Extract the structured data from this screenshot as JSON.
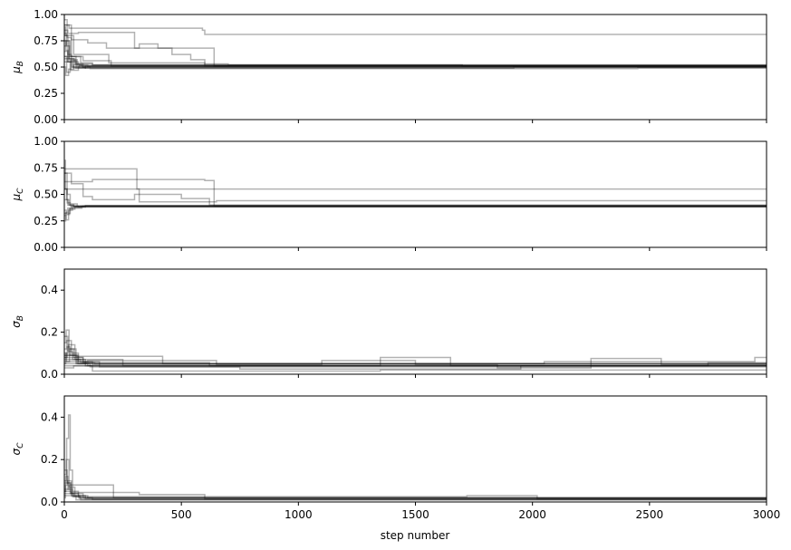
{
  "chart_data": {
    "type": "line",
    "description_kind": "MCMC walker trace plot, 4 stacked panels sharing the x axis",
    "shared_x": {
      "label": "step number",
      "lim": [
        0,
        3000
      ],
      "ticks": [
        0,
        500,
        1000,
        1500,
        2000,
        2500,
        3000
      ],
      "tick_labels": [
        "0",
        "500",
        "1000",
        "1500",
        "2000",
        "2500",
        "3000"
      ]
    },
    "line_color": "#000000",
    "line_alpha": 0.3,
    "panels": [
      {
        "ylabel_base": "μ",
        "ylabel_sub": "B",
        "ylim": [
          0,
          1
        ],
        "yticks": [
          0,
          0.25,
          0.5,
          0.75,
          1.0
        ],
        "ytick_labels": [
          "0.00",
          "0.25",
          "0.50",
          "0.75",
          "1.00"
        ],
        "series": [
          {
            "x": [
              0,
              5,
              15,
              30,
              60,
              100,
              3000
            ],
            "y": [
              0.88,
              0.8,
              0.62,
              0.55,
              0.52,
              0.51,
              0.51
            ]
          },
          {
            "x": [
              0,
              8,
              20,
              45,
              80,
              3000
            ],
            "y": [
              0.7,
              0.75,
              0.58,
              0.53,
              0.5,
              0.5
            ]
          },
          {
            "x": [
              0,
              10,
              25,
              50,
              90,
              3000
            ],
            "y": [
              0.6,
              0.45,
              0.56,
              0.49,
              0.51,
              0.51
            ]
          },
          {
            "x": [
              0,
              12,
              30,
              70,
              120,
              3000
            ],
            "y": [
              0.95,
              0.78,
              0.6,
              0.54,
              0.52,
              0.52
            ]
          },
          {
            "x": [
              0,
              6,
              18,
              40,
              75,
              3000
            ],
            "y": [
              0.5,
              0.42,
              0.48,
              0.52,
              0.5,
              0.5
            ]
          },
          {
            "x": [
              0,
              9,
              22,
              55,
              95,
              3000
            ],
            "y": [
              0.82,
              0.7,
              0.57,
              0.51,
              0.505,
              0.505
            ]
          },
          {
            "x": [
              0,
              7,
              16,
              35,
              65,
              3000
            ],
            "y": [
              0.75,
              0.66,
              0.55,
              0.5,
              0.515,
              0.515
            ]
          },
          {
            "x": [
              0,
              14,
              28,
              60,
              110,
              3000
            ],
            "y": [
              0.65,
              0.55,
              0.47,
              0.5,
              0.495,
              0.495
            ]
          },
          {
            "x": [
              0,
              20,
              210,
              590,
              600,
              3000
            ],
            "y": [
              0.9,
              0.87,
              0.87,
              0.85,
              0.81,
              0.81
            ]
          },
          {
            "x": [
              0,
              15,
              60,
              280,
              300,
              580,
              640,
              3000
            ],
            "y": [
              0.85,
              0.82,
              0.83,
              0.83,
              0.68,
              0.68,
              0.51,
              0.51
            ]
          },
          {
            "x": [
              0,
              30,
              100,
              180,
              320,
              400,
              460,
              540,
              600,
              3000
            ],
            "y": [
              0.9,
              0.76,
              0.73,
              0.68,
              0.72,
              0.68,
              0.62,
              0.57,
              0.51,
              0.51
            ]
          },
          {
            "x": [
              0,
              40,
              160,
              190,
              600,
              700,
              1000,
              1600,
              1700,
              3000
            ],
            "y": [
              0.8,
              0.62,
              0.62,
              0.54,
              0.53,
              0.52,
              0.52,
              0.52,
              0.51,
              0.51
            ]
          },
          {
            "x": [
              0,
              30,
              90,
              1900,
              1920,
              2900,
              3000
            ],
            "y": [
              0.55,
              0.5,
              0.49,
              0.49,
              0.5,
              0.5,
              0.5
            ]
          },
          {
            "x": [
              0,
              50,
              120,
              3000
            ],
            "y": [
              0.6,
              0.53,
              0.52,
              0.52
            ]
          },
          {
            "x": [
              0,
              25,
              80,
              200,
              3000
            ],
            "y": [
              0.75,
              0.6,
              0.56,
              0.51,
              0.51
            ]
          },
          {
            "x": [
              0,
              40,
              110,
              2400,
              2450,
              3000
            ],
            "y": [
              0.58,
              0.49,
              0.485,
              0.485,
              0.49,
              0.49
            ]
          }
        ]
      },
      {
        "ylabel_base": "μ",
        "ylabel_sub": "C",
        "ylim": [
          0,
          1
        ],
        "yticks": [
          0,
          0.25,
          0.5,
          0.75,
          1.0
        ],
        "ytick_labels": [
          "0.00",
          "0.25",
          "0.50",
          "0.75",
          "1.00"
        ],
        "series": [
          {
            "x": [
              0,
              5,
              12,
              25,
              50,
              3000
            ],
            "y": [
              0.82,
              0.55,
              0.42,
              0.39,
              0.385,
              0.385
            ]
          },
          {
            "x": [
              0,
              8,
              18,
              35,
              70,
              3000
            ],
            "y": [
              0.3,
              0.26,
              0.35,
              0.38,
              0.39,
              0.39
            ]
          },
          {
            "x": [
              0,
              10,
              20,
              40,
              90,
              3000
            ],
            "y": [
              0.55,
              0.45,
              0.4,
              0.38,
              0.395,
              0.395
            ]
          },
          {
            "x": [
              0,
              6,
              15,
              30,
              60,
              3000
            ],
            "y": [
              0.25,
              0.33,
              0.37,
              0.39,
              0.38,
              0.38
            ]
          },
          {
            "x": [
              0,
              12,
              25,
              55,
              100,
              3000
            ],
            "y": [
              0.7,
              0.5,
              0.41,
              0.39,
              0.39,
              0.39
            ]
          },
          {
            "x": [
              0,
              9,
              22,
              45,
              80,
              3000
            ],
            "y": [
              0.35,
              0.31,
              0.36,
              0.385,
              0.39,
              0.39
            ]
          },
          {
            "x": [
              0,
              20,
              300,
              310,
              3000
            ],
            "y": [
              0.74,
              0.74,
              0.74,
              0.55,
              0.55
            ]
          },
          {
            "x": [
              0,
              40,
              310,
              320,
              640,
              650,
              3000
            ],
            "y": [
              0.55,
              0.55,
              0.55,
              0.43,
              0.43,
              0.44,
              0.44
            ]
          },
          {
            "x": [
              0,
              60,
              120,
              330,
              600,
              640,
              3000
            ],
            "y": [
              0.62,
              0.62,
              0.64,
              0.64,
              0.63,
              0.39,
              0.39
            ]
          },
          {
            "x": [
              0,
              30,
              80,
              120,
              300,
              500,
              620,
              3000
            ],
            "y": [
              0.7,
              0.6,
              0.48,
              0.45,
              0.5,
              0.46,
              0.4,
              0.4
            ]
          },
          {
            "x": [
              0,
              15,
              40,
              3000
            ],
            "y": [
              0.45,
              0.4,
              0.39,
              0.39
            ]
          },
          {
            "x": [
              0,
              25,
              75,
              3000
            ],
            "y": [
              0.32,
              0.37,
              0.385,
              0.385
            ]
          }
        ]
      },
      {
        "ylabel_base": "σ",
        "ylabel_sub": "B",
        "ylim": [
          0,
          0.5
        ],
        "yticks": [
          0,
          0.2,
          0.4
        ],
        "ytick_labels": [
          "0.0",
          "0.2",
          "0.4"
        ],
        "series": [
          {
            "x": [
              0,
              8,
              20,
              40,
              80,
              150,
              3000
            ],
            "y": [
              0.15,
              0.21,
              0.12,
              0.08,
              0.06,
              0.05,
              0.05
            ]
          },
          {
            "x": [
              0,
              10,
              30,
              60,
              120,
              3000
            ],
            "y": [
              0.12,
              0.16,
              0.1,
              0.06,
              0.045,
              0.045
            ]
          },
          {
            "x": [
              0,
              6,
              18,
              45,
              90,
              200,
              3000
            ],
            "y": [
              0.05,
              0.1,
              0.14,
              0.07,
              0.04,
              0.04,
              0.04
            ]
          },
          {
            "x": [
              0,
              12,
              25,
              55,
              110,
              3000
            ],
            "y": [
              0.08,
              0.13,
              0.09,
              0.05,
              0.035,
              0.035
            ]
          },
          {
            "x": [
              0,
              15,
              35,
              70,
              130,
              3000
            ],
            "y": [
              0.18,
              0.11,
              0.07,
              0.055,
              0.05,
              0.05
            ]
          },
          {
            "x": [
              0,
              9,
              22,
              50,
              100,
              3000
            ],
            "y": [
              0.1,
              0.06,
              0.12,
              0.05,
              0.04,
              0.04
            ]
          },
          {
            "x": [
              0,
              50,
              400,
              420,
              3000
            ],
            "y": [
              0.09,
              0.085,
              0.085,
              0.05,
              0.05
            ]
          },
          {
            "x": [
              0,
              100,
              600,
              650,
              1050,
              1100,
              1450,
              1500,
              1800,
              1850,
              2200,
              2250,
              2500,
              2550,
              3000
            ],
            "y": [
              0.06,
              0.065,
              0.065,
              0.045,
              0.045,
              0.065,
              0.065,
              0.045,
              0.045,
              0.03,
              0.03,
              0.075,
              0.075,
              0.045,
              0.045
            ]
          },
          {
            "x": [
              0,
              200,
              250,
              1300,
              1350,
              1600,
              1650,
              2700,
              2750,
              3000
            ],
            "y": [
              0.07,
              0.07,
              0.04,
              0.04,
              0.08,
              0.08,
              0.04,
              0.04,
              0.055,
              0.055
            ]
          },
          {
            "x": [
              0,
              150,
              700,
              750,
              1900,
              1950,
              3000
            ],
            "y": [
              0.05,
              0.035,
              0.035,
              0.025,
              0.025,
              0.04,
              0.04
            ]
          },
          {
            "x": [
              0,
              80,
              600,
              620,
              3000
            ],
            "y": [
              0.08,
              0.055,
              0.055,
              0.04,
              0.04
            ]
          },
          {
            "x": [
              0,
              120,
              1300,
              1350,
              2950,
              3000
            ],
            "y": [
              0.04,
              0.015,
              0.015,
              0.02,
              0.02,
              0.02
            ]
          },
          {
            "x": [
              0,
              60,
              2000,
              2050,
              2900,
              2950,
              3000
            ],
            "y": [
              0.09,
              0.05,
              0.05,
              0.06,
              0.06,
              0.08,
              0.08
            ]
          },
          {
            "x": [
              0,
              40,
              3000
            ],
            "y": [
              0.03,
              0.04,
              0.04
            ]
          }
        ]
      },
      {
        "ylabel_base": "σ",
        "ylabel_sub": "C",
        "ylim": [
          0,
          0.5
        ],
        "yticks": [
          0,
          0.2,
          0.4
        ],
        "ytick_labels": [
          "0.0",
          "0.2",
          "0.4"
        ],
        "series": [
          {
            "x": [
              0,
              10,
              18,
              25,
              35,
              60,
              100,
              3000
            ],
            "y": [
              0.1,
              0.3,
              0.41,
              0.15,
              0.05,
              0.03,
              0.02,
              0.02
            ]
          },
          {
            "x": [
              0,
              8,
              20,
              45,
              90,
              3000
            ],
            "y": [
              0.13,
              0.2,
              0.07,
              0.03,
              0.015,
              0.015
            ]
          },
          {
            "x": [
              0,
              6,
              15,
              35,
              70,
              3000
            ],
            "y": [
              0.05,
              0.12,
              0.06,
              0.025,
              0.01,
              0.01
            ]
          },
          {
            "x": [
              0,
              12,
              28,
              60,
              120,
              3000
            ],
            "y": [
              0.15,
              0.09,
              0.04,
              0.02,
              0.012,
              0.012
            ]
          },
          {
            "x": [
              0,
              5,
              14,
              30,
              65,
              3000
            ],
            "y": [
              0.02,
              0.08,
              0.1,
              0.03,
              0.018,
              0.018
            ]
          },
          {
            "x": [
              0,
              20,
              200,
              210,
              3000
            ],
            "y": [
              0.06,
              0.08,
              0.08,
              0.02,
              0.02
            ]
          },
          {
            "x": [
              0,
              30,
              300,
              320,
              580,
              600,
              3000
            ],
            "y": [
              0.05,
              0.045,
              0.045,
              0.035,
              0.035,
              0.015,
              0.015
            ]
          },
          {
            "x": [
              0,
              40,
              1700,
              1720,
              2000,
              2020,
              3000
            ],
            "y": [
              0.04,
              0.025,
              0.025,
              0.03,
              0.03,
              0.015,
              0.015
            ]
          },
          {
            "x": [
              0,
              50,
              3000
            ],
            "y": [
              0.03,
              0.01,
              0.01
            ]
          },
          {
            "x": [
              0,
              25,
              80,
              3000
            ],
            "y": [
              0.09,
              0.04,
              0.02,
              0.02
            ]
          }
        ]
      }
    ]
  }
}
